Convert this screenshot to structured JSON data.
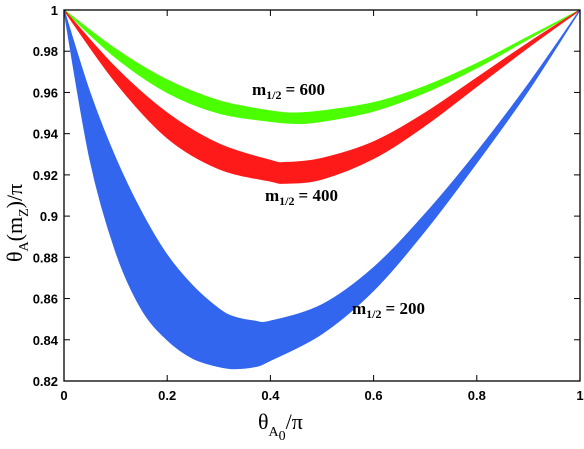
{
  "chart_data": {
    "type": "area",
    "xlabel": {
      "base": "θ",
      "sub": "A",
      "subsub": "0",
      "rest": "/π"
    },
    "ylabel": {
      "base": "θ",
      "sub": "A",
      "paren_open": "(m",
      "paren_sub": "Z",
      "paren_close": ")/π"
    },
    "xlim": [
      0,
      1
    ],
    "ylim": [
      0.82,
      1
    ],
    "xticks": [
      0,
      0.2,
      0.4,
      0.6,
      0.8,
      1
    ],
    "xtick_labels": [
      "0",
      "0.2",
      "0.4",
      "0.6",
      "0.8",
      "1"
    ],
    "yticks": [
      0.82,
      0.84,
      0.86,
      0.88,
      0.9,
      0.92,
      0.94,
      0.96,
      0.98,
      1
    ],
    "ytick_labels": [
      "0.82",
      "0.84",
      "0.86",
      "0.88",
      "0.9",
      "0.92",
      "0.94",
      "0.96",
      "0.98",
      "1"
    ],
    "grid": false,
    "series": [
      {
        "label_main": "m",
        "label_sub": "1/2",
        "label_value": "= 600",
        "color": "#4cff00",
        "x": [
          0,
          0.1,
          0.2,
          0.3,
          0.4,
          0.45,
          0.5,
          0.6,
          0.7,
          0.8,
          0.9,
          1
        ],
        "upper": [
          1,
          0.981,
          0.966,
          0.956,
          0.951,
          0.95,
          0.951,
          0.955,
          0.963,
          0.974,
          0.987,
          1
        ],
        "lower": [
          1,
          0.977,
          0.96,
          0.95,
          0.946,
          0.945,
          0.946,
          0.951,
          0.96,
          0.972,
          0.986,
          1
        ]
      },
      {
        "label_main": "m",
        "label_sub": "1/2",
        "label_value": "= 400",
        "color": "#ff1a1a",
        "x": [
          0,
          0.1,
          0.2,
          0.3,
          0.4,
          0.43,
          0.5,
          0.6,
          0.7,
          0.8,
          0.9,
          1
        ],
        "upper": [
          1,
          0.972,
          0.95,
          0.935,
          0.927,
          0.926,
          0.928,
          0.936,
          0.95,
          0.967,
          0.984,
          1
        ],
        "lower": [
          1,
          0.965,
          0.938,
          0.923,
          0.917,
          0.916,
          0.918,
          0.928,
          0.944,
          0.963,
          0.982,
          1
        ]
      },
      {
        "label_main": "m",
        "label_sub": "1/2",
        "label_value": "= 200",
        "color": "#3366ee",
        "x": [
          0,
          0.05,
          0.1,
          0.15,
          0.2,
          0.25,
          0.3,
          0.33,
          0.37,
          0.4,
          0.5,
          0.6,
          0.7,
          0.8,
          0.9,
          1
        ],
        "upper": [
          1,
          0.96,
          0.928,
          0.902,
          0.881,
          0.866,
          0.855,
          0.851,
          0.849,
          0.849,
          0.857,
          0.875,
          0.901,
          0.931,
          0.964,
          1
        ],
        "lower": [
          1,
          0.928,
          0.883,
          0.855,
          0.84,
          0.831,
          0.827,
          0.826,
          0.827,
          0.83,
          0.843,
          0.864,
          0.893,
          0.926,
          0.961,
          1
        ]
      }
    ]
  }
}
